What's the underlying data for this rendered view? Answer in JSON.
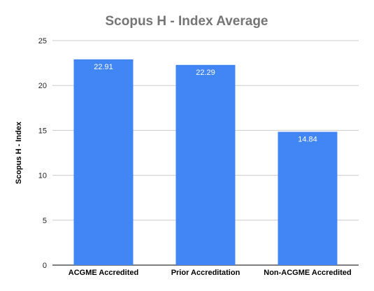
{
  "chart_data": {
    "type": "bar",
    "title": "Scopus H - Index Average",
    "xlabel": "",
    "ylabel": "Scopus H - Index",
    "categories": [
      "ACGME Accredited",
      "Prior Accreditation",
      "Non-ACGME Accredited"
    ],
    "series": [
      {
        "values": [
          22.91,
          22.29,
          14.84
        ],
        "data_labels": [
          "22.91",
          "22.29",
          "14.84"
        ],
        "color": "#4285f4"
      }
    ],
    "ylim": [
      0,
      25
    ],
    "yticks": [
      0,
      5,
      10,
      15,
      20,
      25
    ],
    "grid": true,
    "legend": "none"
  },
  "colors": {
    "bar": "#4285f4",
    "title": "#757575",
    "axis_label": "#000000",
    "tick_label": "#222222",
    "gridline": "#cccccc",
    "baseline": "#333333",
    "data_label": "#ffffff"
  }
}
